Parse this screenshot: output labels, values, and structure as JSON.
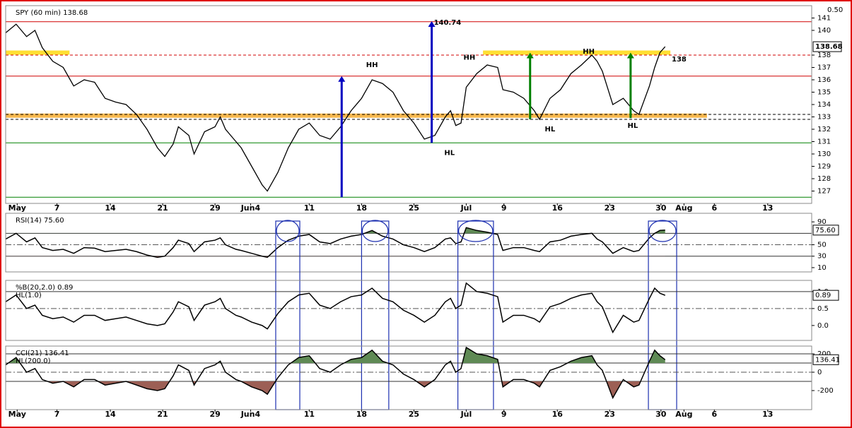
{
  "chart_data": [
    {
      "type": "line",
      "title": "SPY (60 min) 138.68",
      "price_step": "0.50",
      "color": "#000000",
      "last_value": 138.68,
      "xlim": [
        0,
        77
      ],
      "ylim": [
        126,
        142
      ],
      "xticks": [
        {
          "value": 1.1,
          "label": "May"
        },
        {
          "value": 4.9,
          "label": "7"
        },
        {
          "value": 10,
          "label": "14"
        },
        {
          "value": 15,
          "label": "21"
        },
        {
          "value": 20,
          "label": "29"
        },
        {
          "value": 23.4,
          "label": "Jun4"
        },
        {
          "value": 29,
          "label": "11"
        },
        {
          "value": 34,
          "label": "18"
        },
        {
          "value": 39,
          "label": "25"
        },
        {
          "value": 44,
          "label": "Jul"
        },
        {
          "value": 47.6,
          "label": "9"
        },
        {
          "value": 52.7,
          "label": "16"
        },
        {
          "value": 57.7,
          "label": "23"
        },
        {
          "value": 62.6,
          "label": "30"
        },
        {
          "value": 64.8,
          "label": "Aug"
        },
        {
          "value": 67.7,
          "label": "6"
        },
        {
          "value": 72.8,
          "label": "13"
        }
      ],
      "yticks": [
        127,
        128,
        129,
        130,
        131,
        132,
        133,
        134,
        135,
        136,
        137,
        138,
        140,
        141
      ],
      "x": [
        0,
        1,
        2,
        2.8,
        3.5,
        4.5,
        5.5,
        6.5,
        7.5,
        8.5,
        9.5,
        10.5,
        11.5,
        12.5,
        13.5,
        14.5,
        15.2,
        16,
        16.5,
        17.5,
        18,
        19,
        20,
        20.5,
        21,
        22,
        22.5,
        23.5,
        24.5,
        25,
        26,
        27,
        28,
        29,
        30,
        31,
        32,
        33,
        34,
        35,
        36,
        37,
        38,
        39,
        40,
        41,
        42,
        42.5,
        43,
        43.5,
        44,
        45,
        46,
        47,
        47.5,
        48.5,
        49.5,
        50.5,
        51,
        52,
        53,
        54,
        55,
        56,
        56.5,
        57,
        58,
        59,
        60,
        60.5,
        61.5,
        62,
        62.5,
        63
      ],
      "values": [
        139.8,
        140.5,
        139.5,
        140,
        138.6,
        137.5,
        137,
        135.5,
        136,
        135.8,
        134.5,
        134.2,
        134,
        133.2,
        132,
        130.5,
        129.8,
        130.8,
        132.2,
        131.5,
        130,
        131.8,
        132.2,
        133,
        132,
        131,
        130.5,
        129,
        127.5,
        127,
        128.5,
        130.5,
        132,
        132.5,
        131.5,
        131.2,
        132.2,
        133.5,
        134.5,
        136,
        135.7,
        135,
        133.5,
        132.5,
        131.2,
        131.5,
        133,
        133.5,
        132.3,
        132.5,
        135.4,
        136.5,
        137.2,
        137,
        135.2,
        135,
        134.5,
        133.5,
        132.8,
        134.5,
        135.2,
        136.5,
        137.2,
        138,
        137.5,
        136.7,
        134,
        134.5,
        133.5,
        133.2,
        135.5,
        137,
        138.2,
        138.68
      ],
      "levels": [
        {
          "value": 140.7,
          "color": "#d00000",
          "dash": false
        },
        {
          "value": 138,
          "color": "#d00000",
          "dash": true,
          "show_value": true
        },
        {
          "value": 136.3,
          "color": "#d00000",
          "dash": false
        },
        {
          "value": 133.2,
          "color": "#000000",
          "dash": true
        },
        {
          "value": 132.8,
          "color": "#000000",
          "dash": true
        },
        {
          "value": 130.9,
          "color": "#008000",
          "dash": false
        },
        {
          "value": 126.5,
          "color": "#008000",
          "dash": false
        }
      ],
      "bands": [
        {
          "value": 138.2,
          "from": 0,
          "to": 6.1,
          "color": "#ffd700"
        },
        {
          "value": 138.2,
          "from": 45.6,
          "to": 63.5,
          "color": "#ffd700"
        },
        {
          "value": 133.1,
          "from": 0,
          "to": 67,
          "color": "#f5a623"
        }
      ],
      "arrows": [
        {
          "x": 32.1,
          "from": 126.5,
          "to": 136.3,
          "color": "#0000c0"
        },
        {
          "x": 40.7,
          "from": 130.9,
          "to": 140.74,
          "color": "#0000c0",
          "show_value": true
        },
        {
          "x": 50.1,
          "from": 132.8,
          "to": 138.2,
          "color": "#008000"
        },
        {
          "x": 59.7,
          "from": 132.9,
          "to": 138.2,
          "color": "#008000"
        }
      ],
      "annotations": [
        {
          "text": "HH",
          "x": 35,
          "y": 137.2
        },
        {
          "text": "HH",
          "x": 44.3,
          "y": 137.8
        },
        {
          "text": "HL",
          "x": 42.4,
          "y": 130.1
        },
        {
          "text": "HL",
          "x": 52,
          "y": 132
        },
        {
          "text": "HH",
          "x": 55.7,
          "y": 138.3
        },
        {
          "text": "HL",
          "x": 59.9,
          "y": 132.3
        }
      ]
    },
    {
      "type": "line",
      "title": "RSI(14) 75.60",
      "color": "#000000",
      "xlim": [
        0,
        77
      ],
      "ylim": [
        2.5,
        105
      ],
      "yticks": [
        90,
        50,
        30,
        10
      ],
      "last": {
        "value": 75.6,
        "label": "75.60"
      },
      "fill_above": 70,
      "fill_below": 30,
      "ref_lines": [
        {
          "value": 70,
          "dash": false
        },
        {
          "value": 50,
          "dash": true
        },
        {
          "value": 30,
          "dash": false
        }
      ],
      "highlights": [
        [
          25.8,
          28.1
        ],
        [
          34,
          36.6
        ],
        [
          43.2,
          46.6
        ],
        [
          61.4,
          64.1
        ]
      ],
      "x": [
        0,
        1,
        2,
        2.8,
        3.5,
        4.5,
        5.5,
        6.5,
        7.5,
        8.5,
        9.5,
        10.5,
        11.5,
        12.5,
        13.5,
        14.5,
        15.2,
        16,
        16.5,
        17.5,
        18,
        19,
        20,
        20.5,
        21,
        22,
        22.5,
        23.5,
        24.5,
        25,
        26,
        27,
        28,
        29,
        30,
        31,
        32,
        33,
        34,
        35,
        36,
        37,
        38,
        39,
        40,
        41,
        42,
        42.5,
        43,
        43.5,
        44,
        45,
        46,
        47,
        47.5,
        48.5,
        49.5,
        50.5,
        51,
        52,
        53,
        54,
        55,
        56,
        56.5,
        57,
        58,
        59,
        60,
        60.5,
        61.5,
        62,
        62.5,
        63
      ],
      "values": [
        60,
        70,
        55,
        62,
        45,
        40,
        42,
        35,
        45,
        44,
        38,
        40,
        42,
        38,
        32,
        28,
        30,
        45,
        58,
        52,
        38,
        55,
        58,
        62,
        50,
        42,
        40,
        35,
        30,
        28,
        45,
        58,
        65,
        68,
        55,
        52,
        60,
        65,
        68,
        75,
        65,
        60,
        50,
        45,
        38,
        45,
        60,
        62,
        52,
        55,
        80,
        75,
        72,
        68,
        40,
        45,
        45,
        40,
        38,
        55,
        58,
        65,
        68,
        70,
        60,
        55,
        35,
        45,
        38,
        40,
        62,
        70,
        75,
        75.6
      ]
    },
    {
      "type": "line",
      "title": "%B(20,2.0) 0.89",
      "subtitle": "HL(1.0)",
      "color": "#000000",
      "xlim": [
        0,
        77
      ],
      "ylim": [
        -0.44,
        1.33
      ],
      "yticks": [
        {
          "value": 1,
          "label": "1.0"
        },
        0.5,
        {
          "value": 0,
          "label": "0.0"
        }
      ],
      "last": {
        "value": 0.89,
        "label": "0.89"
      },
      "ref_lines": [
        {
          "value": 1,
          "dash": false
        },
        {
          "value": 0.5,
          "dash": true
        }
      ],
      "x": [
        0,
        1,
        2,
        2.8,
        3.5,
        4.5,
        5.5,
        6.5,
        7.5,
        8.5,
        9.5,
        10.5,
        11.5,
        12.5,
        13.5,
        14.5,
        15.2,
        16,
        16.5,
        17.5,
        18,
        19,
        20,
        20.5,
        21,
        22,
        22.5,
        23.5,
        24.5,
        25,
        26,
        27,
        28,
        29,
        30,
        31,
        32,
        33,
        34,
        35,
        36,
        37,
        38,
        39,
        40,
        41,
        42,
        42.5,
        43,
        43.5,
        44,
        45,
        46,
        47,
        47.5,
        48.5,
        49.5,
        50.5,
        51,
        52,
        53,
        54,
        55,
        56,
        56.5,
        57,
        58,
        59,
        60,
        60.5,
        61.5,
        62,
        62.5,
        63
      ],
      "values": [
        0.7,
        0.9,
        0.5,
        0.6,
        0.3,
        0.2,
        0.25,
        0.1,
        0.3,
        0.3,
        0.15,
        0.2,
        0.25,
        0.15,
        0.05,
        0,
        0.05,
        0.4,
        0.7,
        0.55,
        0.15,
        0.6,
        0.7,
        0.8,
        0.5,
        0.3,
        0.25,
        0.1,
        0,
        -0.1,
        0.35,
        0.7,
        0.9,
        0.95,
        0.6,
        0.5,
        0.7,
        0.85,
        0.9,
        1.1,
        0.8,
        0.7,
        0.45,
        0.3,
        0.1,
        0.3,
        0.7,
        0.8,
        0.5,
        0.6,
        1.25,
        1,
        0.95,
        0.85,
        0.1,
        0.3,
        0.3,
        0.2,
        0.1,
        0.55,
        0.65,
        0.8,
        0.9,
        0.95,
        0.7,
        0.55,
        -0.2,
        0.3,
        0.1,
        0.15,
        0.8,
        1.1,
        0.95,
        0.89
      ]
    },
    {
      "type": "line",
      "title": "CCI(21) 136.41",
      "subtitle": "HL(200.0)",
      "color": "#000000",
      "xlim": [
        0,
        77
      ],
      "ylim": [
        -408,
        285
      ],
      "yticks": [
        200,
        0,
        -200
      ],
      "last": {
        "value": 136.41,
        "label": "136.41"
      },
      "fill_above": 100,
      "fill_below": -100,
      "ref_lines": [
        {
          "value": 200,
          "dash": false
        },
        {
          "value": 100,
          "dash": false
        },
        {
          "value": 0,
          "dash": true
        },
        {
          "value": -100,
          "dash": false
        }
      ],
      "xticks": [
        {
          "value": 1.1,
          "label": "May"
        },
        {
          "value": 4.9,
          "label": "7"
        },
        {
          "value": 10,
          "label": "14"
        },
        {
          "value": 15,
          "label": "21"
        },
        {
          "value": 20,
          "label": "29"
        },
        {
          "value": 23.4,
          "label": "Jun4"
        },
        {
          "value": 29,
          "label": "11"
        },
        {
          "value": 34,
          "label": "18"
        },
        {
          "value": 39,
          "label": "25"
        },
        {
          "value": 44,
          "label": "Jul"
        },
        {
          "value": 47.6,
          "label": "9"
        },
        {
          "value": 52.7,
          "label": "16"
        },
        {
          "value": 57.7,
          "label": "23"
        },
        {
          "value": 62.6,
          "label": "30"
        },
        {
          "value": 64.8,
          "label": "Aug"
        },
        {
          "value": 67.7,
          "label": "6"
        },
        {
          "value": 72.8,
          "label": "13"
        }
      ],
      "x": [
        0,
        1,
        2,
        2.8,
        3.5,
        4.5,
        5.5,
        6.5,
        7.5,
        8.5,
        9.5,
        10.5,
        11.5,
        12.5,
        13.5,
        14.5,
        15.2,
        16,
        16.5,
        17.5,
        18,
        19,
        20,
        20.5,
        21,
        22,
        22.5,
        23.5,
        24.5,
        25,
        26,
        27,
        28,
        29,
        30,
        31,
        32,
        33,
        34,
        35,
        36,
        37,
        38,
        39,
        40,
        41,
        42,
        42.5,
        43,
        43.5,
        44,
        45,
        46,
        47,
        47.5,
        48.5,
        49.5,
        50.5,
        51,
        52,
        53,
        54,
        55,
        56,
        56.5,
        57,
        58,
        59,
        60,
        60.5,
        61.5,
        62,
        62.5,
        63
      ],
      "values": [
        80,
        160,
        0,
        40,
        -80,
        -120,
        -100,
        -160,
        -80,
        -80,
        -140,
        -120,
        -100,
        -140,
        -180,
        -200,
        -180,
        -40,
        80,
        20,
        -140,
        40,
        80,
        120,
        0,
        -80,
        -100,
        -160,
        -200,
        -240,
        -60,
        80,
        160,
        180,
        40,
        0,
        80,
        140,
        160,
        240,
        120,
        80,
        -20,
        -80,
        -160,
        -80,
        80,
        120,
        0,
        40,
        270,
        200,
        180,
        140,
        -160,
        -80,
        -80,
        -120,
        -160,
        20,
        60,
        120,
        160,
        180,
        80,
        20,
        -280,
        -80,
        -160,
        -140,
        120,
        240,
        180,
        136.41
      ]
    }
  ]
}
